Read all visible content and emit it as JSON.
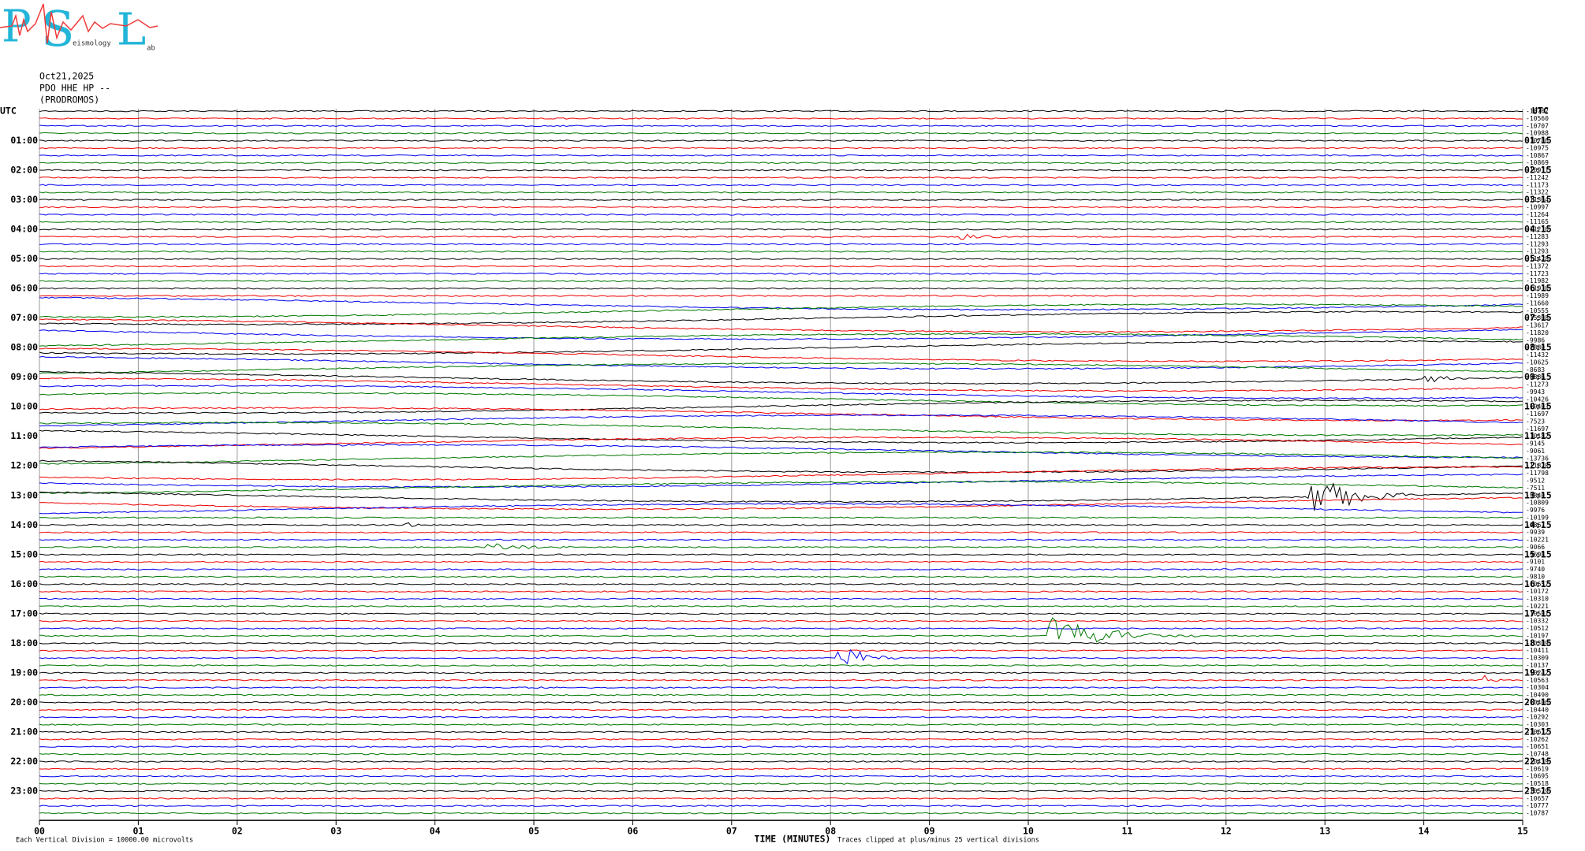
{
  "logo": {
    "p": "P",
    "s": "S",
    "l": "L",
    "words": "eismology",
    "ab": "ab"
  },
  "header": {
    "date": "Oct21,2025",
    "station": "PDO HHE HP --",
    "place": "(PRODROMOS)"
  },
  "utc_left": "UTC",
  "utc_right": "UTC",
  "left_labels": [
    "01:00",
    "02:00",
    "03:00",
    "04:00",
    "05:00",
    "06:00",
    "07:00",
    "08:00",
    "09:00",
    "10:00",
    "11:00",
    "12:00",
    "13:00",
    "14:00",
    "15:00",
    "16:00",
    "17:00",
    "18:00",
    "19:00",
    "20:00",
    "21:00",
    "22:00",
    "23:00"
  ],
  "right_labels": [
    "01:15",
    "02:15",
    "03:15",
    "04:15",
    "05:15",
    "06:15",
    "07:15",
    "08:15",
    "09:15",
    "10:15",
    "11:15",
    "12:15",
    "13:15",
    "14:15",
    "15:15",
    "16:15",
    "17:15",
    "18:15",
    "19:15",
    "20:15",
    "21:15",
    "22:15",
    "23:15"
  ],
  "offsets": [
    -10707,
    -10560,
    -10707,
    -10988,
    -10786,
    -10975,
    -10867,
    -10869,
    -10911,
    -11242,
    -11173,
    -11322,
    -11364,
    -10997,
    -11264,
    -11165,
    -11210,
    -11283,
    -11293,
    -11293,
    -11428,
    -11372,
    -11723,
    -11982,
    -11930,
    -11989,
    -11660,
    -10555,
    -15308,
    -13617,
    -11820,
    -9986,
    -7880,
    -11432,
    -10625,
    -8683,
    -8886,
    -11273,
    -9943,
    -10426,
    -10403,
    -11697,
    -7523,
    -11697,
    -10182,
    -9145,
    -9061,
    -13736,
    -11820,
    -11798,
    -9512,
    -7511,
    -9840,
    -10809,
    -9976,
    -10199,
    -9867,
    -9939,
    -10221,
    -9066,
    -9698,
    -9101,
    -9740,
    -9810,
    -10657,
    -10172,
    -10310,
    -10221,
    -10501,
    -10332,
    -10512,
    -10197,
    -10309,
    -10411,
    -10309,
    -10137,
    -10242,
    -10563,
    -10304,
    -10490,
    -10406,
    -10440,
    -10292,
    -10303,
    -10612,
    -10262,
    -10651,
    -10748,
    -10439,
    -10619,
    -10695,
    -10518,
    -10579,
    -10657,
    -10777,
    -10787
  ],
  "x_axis": {
    "ticks": [
      "00",
      "01",
      "02",
      "03",
      "04",
      "05",
      "06",
      "07",
      "08",
      "09",
      "10",
      "11",
      "12",
      "13",
      "14",
      "15"
    ],
    "label": "TIME (MINUTES)"
  },
  "notes": {
    "division": "Each Vertical Division = 10000.00 microvolts",
    "clip": "Traces clipped at plus/minus 25 vertical divisions"
  }
}
